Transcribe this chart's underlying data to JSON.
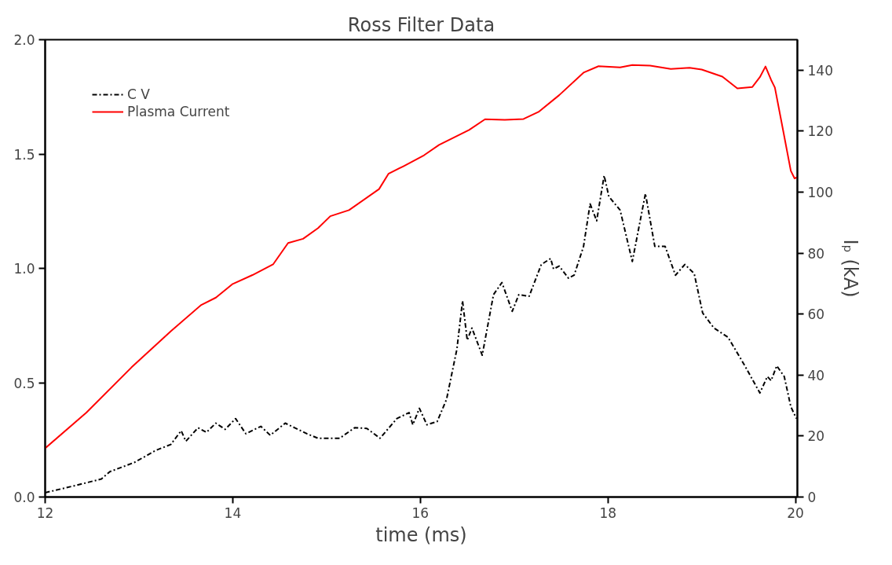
{
  "chart_data": {
    "type": "line",
    "title": "Ross Filter Data",
    "xlabel": "time (ms)",
    "y2label": "Iₚ (kA)",
    "xlim": [
      12,
      20.02
    ],
    "xticks": [
      12,
      14,
      16,
      18,
      20
    ],
    "ylim": [
      0,
      2
    ],
    "yticks": [
      {
        "value": 0,
        "label": "0.0"
      },
      0.5,
      {
        "value": 1,
        "label": "1.0"
      },
      1.5,
      {
        "value": 2,
        "label": "2.0"
      }
    ],
    "y2lim": [
      0,
      150
    ],
    "y2ticks": [
      0,
      20,
      40,
      60,
      80,
      100,
      120,
      140
    ],
    "grid": false,
    "legend": "top left",
    "marker": "none",
    "series": [
      {
        "name": "C V",
        "color": "#000000",
        "line_style": "dashed",
        "x": [
          12.0,
          12.34,
          12.6,
          12.69,
          12.95,
          13.18,
          13.34,
          13.45,
          13.5,
          13.63,
          13.72,
          13.82,
          13.92,
          14.03,
          14.14,
          14.3,
          14.4,
          14.56,
          14.66,
          14.79,
          14.91,
          15.14,
          15.3,
          15.43,
          15.57,
          15.75,
          15.88,
          15.92,
          15.99,
          16.07,
          16.18,
          16.28,
          16.39,
          16.45,
          16.5,
          16.55,
          16.66,
          16.78,
          16.87,
          16.98,
          17.05,
          17.16,
          17.29,
          17.39,
          17.42,
          17.48,
          17.58,
          17.64,
          17.74,
          17.81,
          17.88,
          17.96,
          18.01,
          18.13,
          18.26,
          18.4,
          18.5,
          18.61,
          18.72,
          18.82,
          18.92,
          19.01,
          19.13,
          19.28,
          19.45,
          19.62,
          19.7,
          19.74,
          19.8,
          19.88,
          19.95,
          20.01
        ],
        "values": [
          0.019,
          0.052,
          0.079,
          0.111,
          0.151,
          0.204,
          0.23,
          0.29,
          0.244,
          0.303,
          0.283,
          0.323,
          0.296,
          0.343,
          0.277,
          0.309,
          0.27,
          0.323,
          0.303,
          0.277,
          0.257,
          0.257,
          0.303,
          0.3,
          0.257,
          0.343,
          0.369,
          0.316,
          0.388,
          0.316,
          0.33,
          0.428,
          0.647,
          0.858,
          0.686,
          0.739,
          0.62,
          0.885,
          0.938,
          0.812,
          0.885,
          0.878,
          1.017,
          1.043,
          0.997,
          1.01,
          0.957,
          0.97,
          1.096,
          1.282,
          1.208,
          1.406,
          1.314,
          1.255,
          1.03,
          1.327,
          1.096,
          1.096,
          0.97,
          1.017,
          0.977,
          0.805,
          0.739,
          0.699,
          0.581,
          0.455,
          0.527,
          0.509,
          0.574,
          0.527,
          0.395,
          0.343
        ]
      },
      {
        "name": "Plasma Current",
        "color": "#ff0000",
        "line_style": "solid",
        "axis": "y2",
        "x": [
          12.0,
          12.44,
          12.92,
          13.34,
          13.66,
          13.82,
          14.0,
          14.21,
          14.43,
          14.59,
          14.75,
          14.91,
          15.04,
          15.24,
          15.56,
          15.66,
          15.82,
          16.04,
          16.2,
          16.52,
          16.69,
          16.9,
          17.1,
          17.26,
          17.48,
          17.74,
          17.9,
          18.13,
          18.26,
          18.45,
          18.67,
          18.87,
          19.0,
          19.22,
          19.38,
          19.54,
          19.62,
          19.68,
          19.74,
          19.78,
          19.87,
          19.95,
          19.99,
          20.02
        ],
        "values": [
          16,
          27.7,
          42.5,
          54.4,
          62.9,
          65.4,
          69.9,
          72.8,
          76.3,
          83.3,
          84.7,
          88.2,
          92.1,
          94.1,
          101,
          106,
          108.5,
          112.1,
          115.5,
          120.4,
          123.9,
          123.7,
          124,
          126.3,
          131.8,
          139.2,
          141.3,
          140.9,
          141.7,
          141.5,
          140.4,
          140.8,
          140.2,
          137.9,
          134,
          134.5,
          137.7,
          141.2,
          136.8,
          134.3,
          119.9,
          107,
          104.5,
          104.9
        ]
      }
    ]
  }
}
